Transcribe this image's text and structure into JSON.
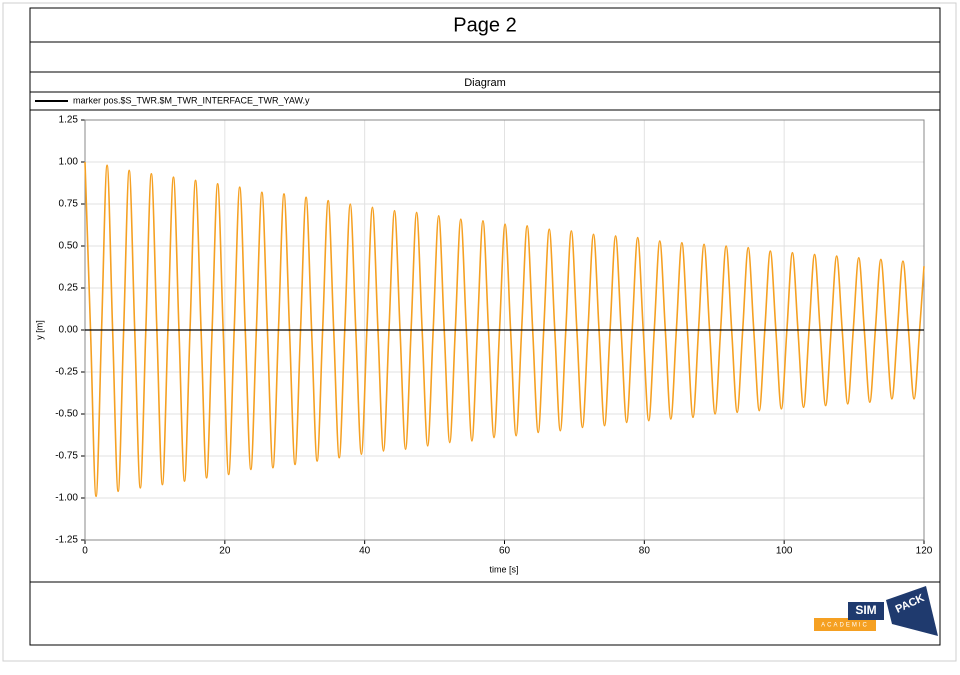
{
  "page_title": "Page 2",
  "diagram_title": "Diagram",
  "logo": {
    "sim": "SIM",
    "pack": "PACK",
    "academic": "ACADEMIC"
  },
  "chart_data": {
    "type": "line",
    "xlabel": "time [s]",
    "ylabel": "y [m]",
    "xlim": [
      0,
      120
    ],
    "ylim": [
      -1.25,
      1.25
    ],
    "xticks": [
      0,
      20,
      40,
      60,
      80,
      100,
      120
    ],
    "yticks": [
      -1.25,
      {
        "value": -1,
        "label": "-1.00"
      },
      -0.75,
      {
        "value": -0.5,
        "label": "-0.50"
      },
      -0.25,
      {
        "value": 0,
        "label": "0.00"
      },
      0.25,
      {
        "value": 0.5,
        "label": "0.50"
      },
      0.75,
      {
        "value": 1,
        "label": "1.00"
      },
      1.25
    ],
    "grid": true,
    "zero_line": true,
    "legend_color": "#000000",
    "x": [
      0,
      0.79,
      1.58,
      2.37,
      3.16,
      3.95,
      4.74,
      5.53,
      6.32,
      7.11,
      7.91,
      8.7,
      9.49,
      10.28,
      11.07,
      11.86,
      12.65,
      13.44,
      14.23,
      15.02,
      15.81,
      16.6,
      17.39,
      18.18,
      18.97,
      19.76,
      20.55,
      21.34,
      22.13,
      22.92,
      23.72,
      24.51,
      25.3,
      26.09,
      26.88,
      27.67,
      28.46,
      29.25,
      30.04,
      30.83,
      31.62,
      32.41,
      33.2,
      33.99,
      34.78,
      35.57,
      36.36,
      37.15,
      37.94,
      38.73,
      39.53,
      40.32,
      41.11,
      41.9,
      42.69,
      43.48,
      44.27,
      45.06,
      45.85,
      46.64,
      47.43,
      48.22,
      49.01,
      49.8,
      50.59,
      51.38,
      52.17,
      52.96,
      53.75,
      54.54,
      55.34,
      56.13,
      56.92,
      57.71,
      58.5,
      59.29,
      60.08,
      60.87,
      61.66,
      62.45,
      63.24,
      64.03,
      64.82,
      65.61,
      66.4,
      67.19,
      67.98,
      68.77,
      69.56,
      70.35,
      71.15,
      71.94,
      72.73,
      73.52,
      74.31,
      75.1,
      75.89,
      76.68,
      77.47,
      78.26,
      79.05,
      79.84,
      80.63,
      81.42,
      82.21,
      83.0,
      83.79,
      84.58,
      85.37,
      86.16,
      86.96,
      87.75,
      88.54,
      89.33,
      90.12,
      90.91,
      91.7,
      92.49,
      93.28,
      94.07,
      94.86,
      95.65,
      96.44,
      97.23,
      98.02,
      98.81,
      99.6,
      100.39,
      101.18,
      101.97,
      102.77,
      103.56,
      104.35,
      105.14,
      105.93,
      106.72,
      107.51,
      108.3,
      109.09,
      109.88,
      110.67,
      111.46,
      112.25,
      113.04,
      113.83,
      114.62,
      115.41,
      116.2,
      116.99,
      117.78,
      118.58,
      119.37,
      120
    ],
    "series": [
      {
        "name": "marker pos.$S_TWR.$M_TWR_INTERFACE_TWR_YAW.y",
        "color": "#f5a022",
        "values": [
          1.0,
          0,
          -0.99,
          0,
          0.98,
          0,
          -0.96,
          0,
          0.95,
          0,
          -0.94,
          0,
          0.93,
          0,
          -0.92,
          0,
          0.91,
          0,
          -0.9,
          0,
          0.89,
          0,
          -0.88,
          0,
          0.87,
          0,
          -0.86,
          0,
          0.85,
          0,
          -0.83,
          0,
          0.82,
          0,
          -0.82,
          0,
          0.81,
          0,
          -0.8,
          0,
          0.79,
          0,
          -0.78,
          0,
          0.77,
          0,
          -0.76,
          0,
          0.75,
          0,
          -0.74,
          0,
          0.73,
          0,
          -0.72,
          0,
          0.71,
          0,
          -0.71,
          0,
          0.7,
          0,
          -0.69,
          0,
          0.68,
          0,
          -0.67,
          0,
          0.66,
          0,
          -0.66,
          0,
          0.65,
          0,
          -0.64,
          0,
          0.63,
          0,
          -0.63,
          0,
          0.62,
          0,
          -0.61,
          0,
          0.6,
          0,
          -0.6,
          0,
          0.59,
          0,
          -0.58,
          0,
          0.57,
          0,
          -0.57,
          0,
          0.56,
          0,
          -0.55,
          0,
          0.55,
          0,
          -0.54,
          0,
          0.53,
          0,
          -0.53,
          0,
          0.52,
          0,
          -0.52,
          0,
          0.51,
          0,
          -0.5,
          0,
          0.5,
          0,
          -0.49,
          0,
          0.49,
          0,
          -0.48,
          0,
          0.47,
          0,
          -0.47,
          0,
          0.46,
          0,
          -0.46,
          0,
          0.45,
          0,
          -0.45,
          0,
          0.44,
          0,
          -0.44,
          0,
          0.43,
          0,
          -0.43,
          0,
          0.42,
          0,
          -0.41,
          0,
          0.41,
          0,
          -0.41,
          0,
          0.38
        ]
      }
    ]
  }
}
